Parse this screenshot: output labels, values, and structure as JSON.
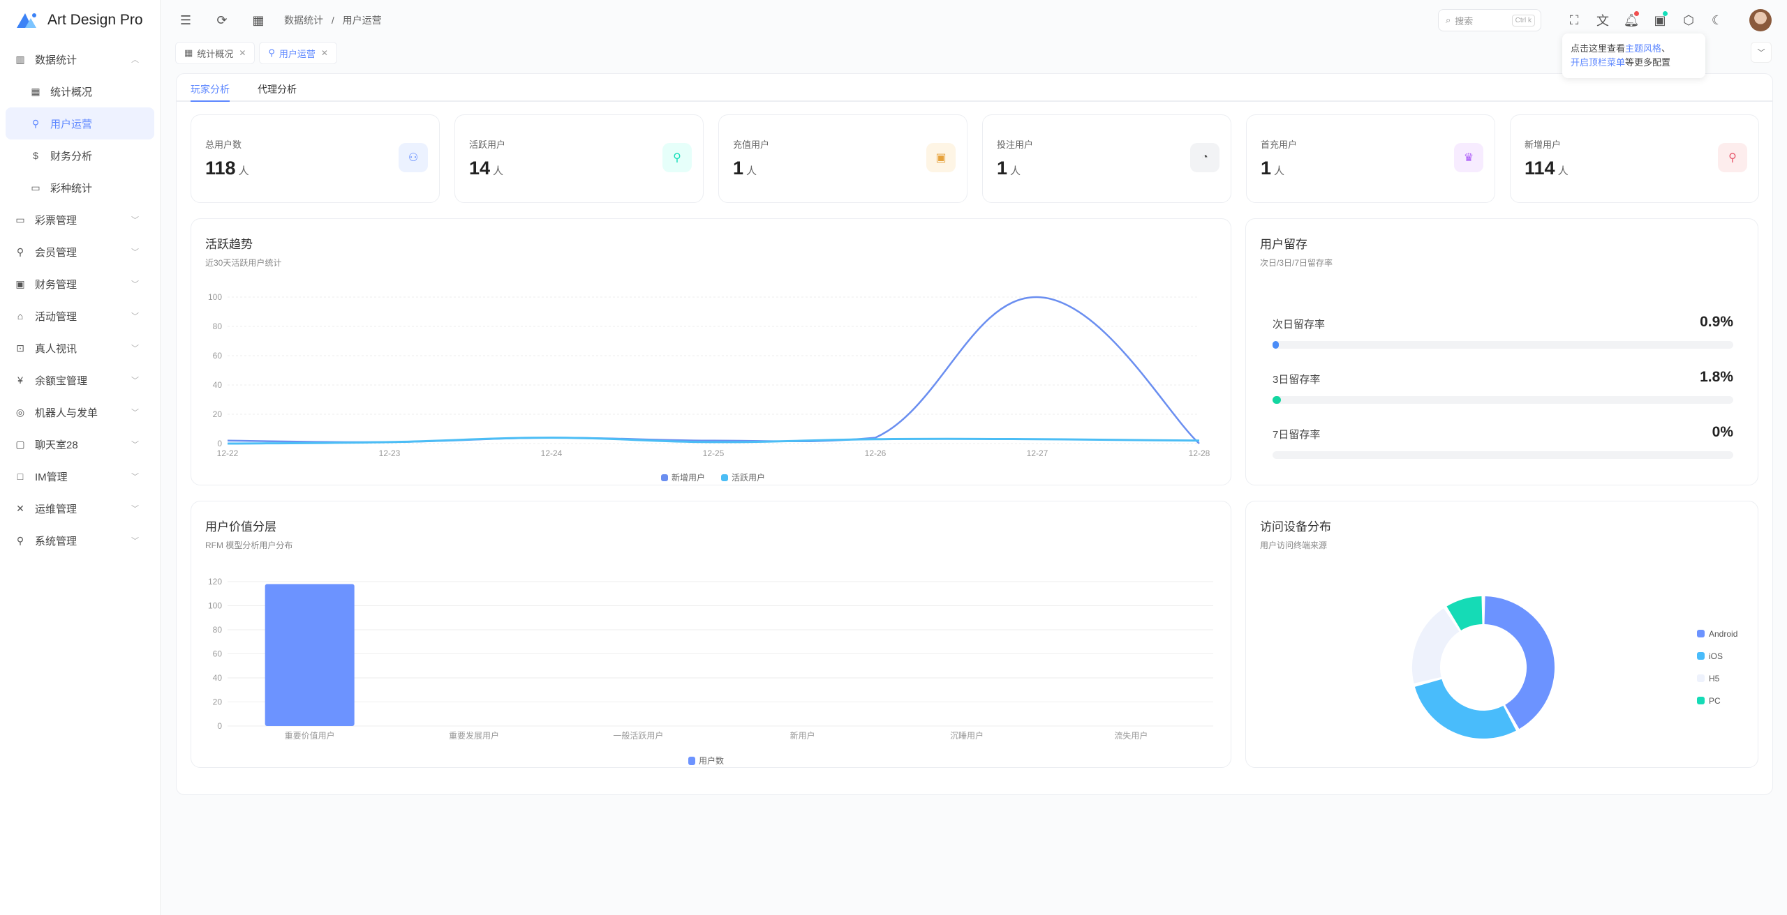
{
  "app": {
    "title": "Art Design Pro"
  },
  "sidebar": {
    "items": [
      {
        "label": "数据统计",
        "icon": "bar-chart-icon",
        "expanded": true,
        "children": [
          {
            "label": "统计概况",
            "icon": "grid-icon"
          },
          {
            "label": "用户运营",
            "icon": "user-icon",
            "active": true
          },
          {
            "label": "财务分析",
            "icon": "dollar-icon"
          },
          {
            "label": "彩种统计",
            "icon": "ticket-icon"
          }
        ]
      },
      {
        "label": "彩票管理",
        "icon": "ticket-icon"
      },
      {
        "label": "会员管理",
        "icon": "user-icon"
      },
      {
        "label": "财务管理",
        "icon": "wallet-icon"
      },
      {
        "label": "活动管理",
        "icon": "gift-icon"
      },
      {
        "label": "真人视讯",
        "icon": "gamepad-icon"
      },
      {
        "label": "余额宝管理",
        "icon": "yen-icon"
      },
      {
        "label": "机器人与发单",
        "icon": "robot-icon"
      },
      {
        "label": "聊天室28",
        "icon": "chat-icon"
      },
      {
        "label": "IM管理",
        "icon": "message-icon"
      },
      {
        "label": "运维管理",
        "icon": "tools-icon"
      },
      {
        "label": "系统管理",
        "icon": "user-icon"
      }
    ]
  },
  "header": {
    "breadcrumb": [
      "数据统计",
      "用户运营"
    ],
    "separator": "/",
    "search_placeholder": "搜索",
    "search_shortcut": "Ctrl k"
  },
  "tooltip": {
    "t1": "点击这里查看",
    "l1": "主题风格",
    "t2": "、",
    "l2": "开启顶栏菜单",
    "t3": "等更多配置"
  },
  "tabs": [
    {
      "label": "统计概况",
      "icon": "grid-icon"
    },
    {
      "label": "用户运营",
      "icon": "user-icon",
      "active": true
    }
  ],
  "subtabs": [
    {
      "label": "玩家分析",
      "active": true
    },
    {
      "label": "代理分析"
    }
  ],
  "stats": [
    {
      "label": "总用户数",
      "value": "118",
      "unit": "人",
      "icon": "users-icon",
      "color": "#5d87ff",
      "bg": "#ecf2ff"
    },
    {
      "label": "活跃用户",
      "value": "14",
      "unit": "人",
      "icon": "user-star-icon",
      "color": "#13deb9",
      "bg": "#e6fffa"
    },
    {
      "label": "充值用户",
      "value": "1",
      "unit": "人",
      "icon": "wallet-icon",
      "color": "#e6a23c",
      "bg": "#fef5e5"
    },
    {
      "label": "投注用户",
      "value": "1",
      "unit": "人",
      "icon": "pie-icon",
      "color": "#555",
      "bg": "#f2f3f5"
    },
    {
      "label": "首充用户",
      "value": "1",
      "unit": "人",
      "icon": "crown-icon",
      "color": "#a855f7",
      "bg": "#f7ecff"
    },
    {
      "label": "新增用户",
      "value": "114",
      "unit": "人",
      "icon": "user-plus-icon",
      "color": "#e6576b",
      "bg": "#fdeded"
    }
  ],
  "trend": {
    "title": "活跃趋势",
    "subtitle": "近30天活跃用户统计"
  },
  "retention": {
    "title": "用户留存",
    "subtitle": "次日/3日/7日留存率",
    "items": [
      {
        "label": "次日留存率",
        "value": "0.9%",
        "percent": 0.9,
        "color": "#4a8cf7"
      },
      {
        "label": "3日留存率",
        "value": "1.8%",
        "percent": 1.8,
        "color": "#13d6a0"
      },
      {
        "label": "7日留存率",
        "value": "0%",
        "percent": 0,
        "color": "#13d6a0"
      }
    ]
  },
  "value_layers": {
    "title": "用户价值分层",
    "subtitle": "RFM 模型分析用户分布"
  },
  "devices": {
    "title": "访问设备分布",
    "subtitle": "用户访问终端来源"
  },
  "chart_data": [
    {
      "type": "line",
      "categories": [
        "12-22",
        "12-23",
        "12-24",
        "12-25",
        "12-26",
        "12-27",
        "12-28"
      ],
      "ylim": [
        0,
        100
      ],
      "yticks": [
        0,
        20,
        40,
        60,
        80,
        100
      ],
      "smooth": true,
      "grid": true,
      "legend": "bottom",
      "series": [
        {
          "name": "新增用户",
          "values": [
            2,
            1,
            4,
            2,
            4,
            100,
            0
          ],
          "color": "#6a8ef0"
        },
        {
          "name": "活跃用户",
          "values": [
            0,
            1,
            4,
            1,
            3,
            3,
            2
          ],
          "color": "#4bbdf5"
        }
      ]
    },
    {
      "type": "bar",
      "categories": [
        "重要价值用户",
        "重要发展用户",
        "一般活跃用户",
        "新用户",
        "沉睡用户",
        "流失用户"
      ],
      "ylim": [
        0,
        120
      ],
      "yticks": [
        0,
        20,
        40,
        60,
        80,
        100,
        120
      ],
      "grid": true,
      "legend": "bottom",
      "series": [
        {
          "name": "用户数",
          "values": [
            118,
            0,
            0,
            0,
            0,
            0
          ],
          "color": "#6c93ff"
        }
      ]
    },
    {
      "type": "pie",
      "donut": true,
      "legend": "right",
      "slices": [
        {
          "name": "Android",
          "value": 42,
          "color": "#6c93ff"
        },
        {
          "name": "iOS",
          "value": 29,
          "color": "#49bcfb"
        },
        {
          "name": "H5",
          "value": 20,
          "color": "#eef2fc"
        },
        {
          "name": "PC",
          "value": 9,
          "color": "#15dbb6"
        }
      ]
    }
  ]
}
